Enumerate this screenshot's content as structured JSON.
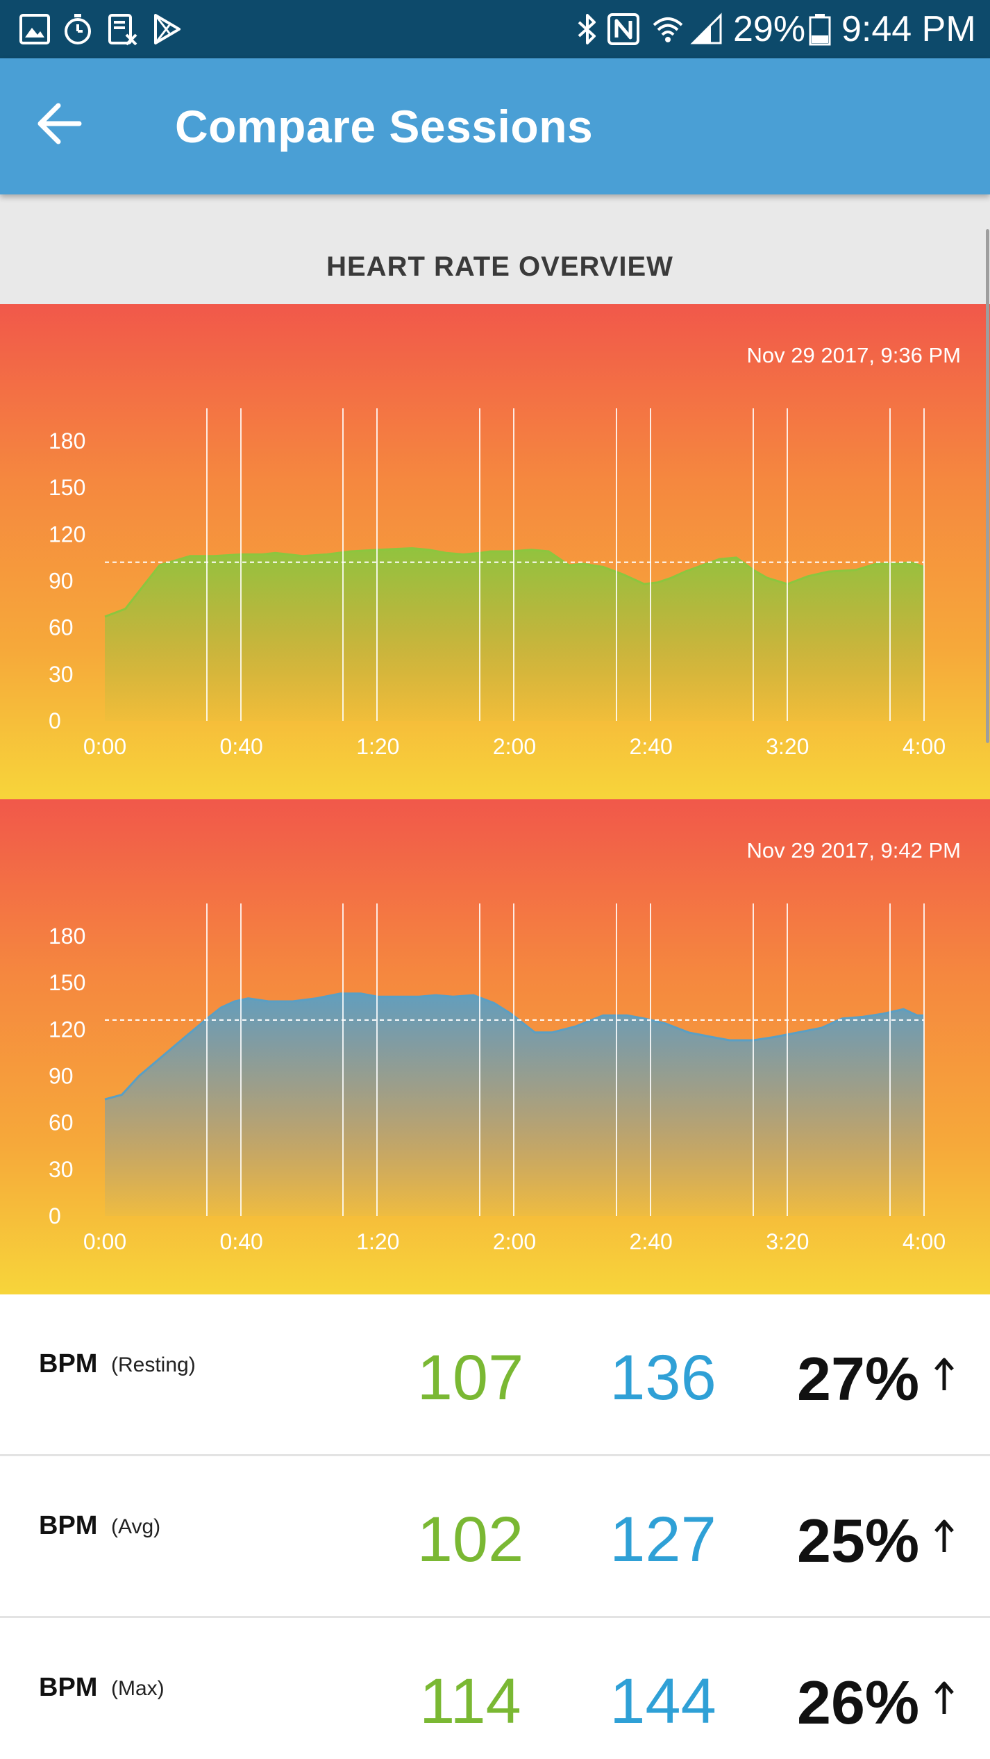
{
  "status_bar": {
    "icons_left": [
      "gallery-icon",
      "stopwatch-icon",
      "screenshot-icon",
      "play-store-icon"
    ],
    "icons_right": [
      "bluetooth-icon",
      "nfc-icon",
      "wifi-icon",
      "signal-icon",
      "battery-icon"
    ],
    "battery": "29%",
    "time": "9:44 PM"
  },
  "app_bar": {
    "back_icon": "arrow-left-icon",
    "title": "Compare Sessions"
  },
  "section": {
    "title": "HEART RATE OVERVIEW"
  },
  "chart_data": [
    {
      "type": "area",
      "date": "Nov 29 2017, 9:36 PM",
      "color": "#8cc63e",
      "y_ticks": [
        "180",
        "150",
        "120",
        "90",
        "60",
        "30",
        "0"
      ],
      "x_ticks": [
        "0:00",
        "0:40",
        "1:20",
        "2:00",
        "2:40",
        "3:20",
        "4:00"
      ],
      "ylim": [
        0,
        180
      ],
      "xlim": [
        0,
        240
      ],
      "reference_line": 102,
      "series": [
        {
          "x": [
            0,
            6,
            16,
            25,
            32,
            40,
            46,
            50,
            58,
            65,
            72,
            80,
            90,
            95,
            100,
            105,
            110,
            113,
            119,
            125,
            130,
            136,
            140,
            146,
            152,
            158,
            162,
            166,
            170,
            175,
            180,
            185,
            190,
            194,
            200,
            206,
            212,
            220,
            226,
            232,
            236,
            240
          ],
          "y": [
            67,
            72,
            100,
            106,
            106,
            107,
            107,
            108,
            106,
            107,
            109,
            110,
            111,
            110,
            108,
            107,
            108,
            109,
            109,
            110,
            109,
            100,
            101,
            99,
            94,
            88,
            89,
            92,
            96,
            100,
            104,
            105,
            97,
            92,
            88,
            93,
            96,
            97,
            101,
            101,
            102,
            99
          ]
        }
      ]
    },
    {
      "type": "area",
      "date": "Nov 29 2017, 9:42 PM",
      "color": "#5a9fc4",
      "y_ticks": [
        "180",
        "150",
        "120",
        "90",
        "60",
        "30",
        "0"
      ],
      "x_ticks": [
        "0:00",
        "0:40",
        "1:20",
        "2:00",
        "2:40",
        "3:20",
        "4:00"
      ],
      "ylim": [
        0,
        180
      ],
      "xlim": [
        0,
        240
      ],
      "reference_line": 126,
      "series": [
        {
          "x": [
            0,
            5,
            10,
            17,
            24,
            30,
            34,
            38,
            42,
            48,
            55,
            62,
            69,
            75,
            80,
            86,
            92,
            97,
            102,
            108,
            114,
            119,
            126,
            131,
            138,
            146,
            153,
            158,
            164,
            171,
            178,
            183,
            190,
            196,
            203,
            210,
            216,
            222,
            228,
            234,
            238,
            240
          ],
          "y": [
            75,
            78,
            90,
            103,
            116,
            127,
            134,
            138,
            140,
            138,
            138,
            140,
            143,
            143,
            141,
            141,
            141,
            142,
            141,
            142,
            137,
            130,
            118,
            118,
            122,
            129,
            129,
            127,
            124,
            118,
            115,
            113,
            113,
            115,
            118,
            121,
            127,
            128,
            130,
            133,
            129,
            129
          ]
        }
      ]
    }
  ],
  "stats": [
    {
      "label": "BPM",
      "qualifier": "(Resting)",
      "session_a": "107",
      "session_b": "136",
      "change": "27%",
      "arrow_icon": "arrow-up-icon"
    },
    {
      "label": "BPM",
      "qualifier": "(Avg)",
      "session_a": "102",
      "session_b": "127",
      "change": "25%",
      "arrow_icon": "arrow-up-icon"
    },
    {
      "label": "BPM",
      "qualifier": "(Max)",
      "session_a": "114",
      "session_b": "144",
      "change": "26%",
      "arrow_icon": "arrow-up-icon"
    }
  ]
}
